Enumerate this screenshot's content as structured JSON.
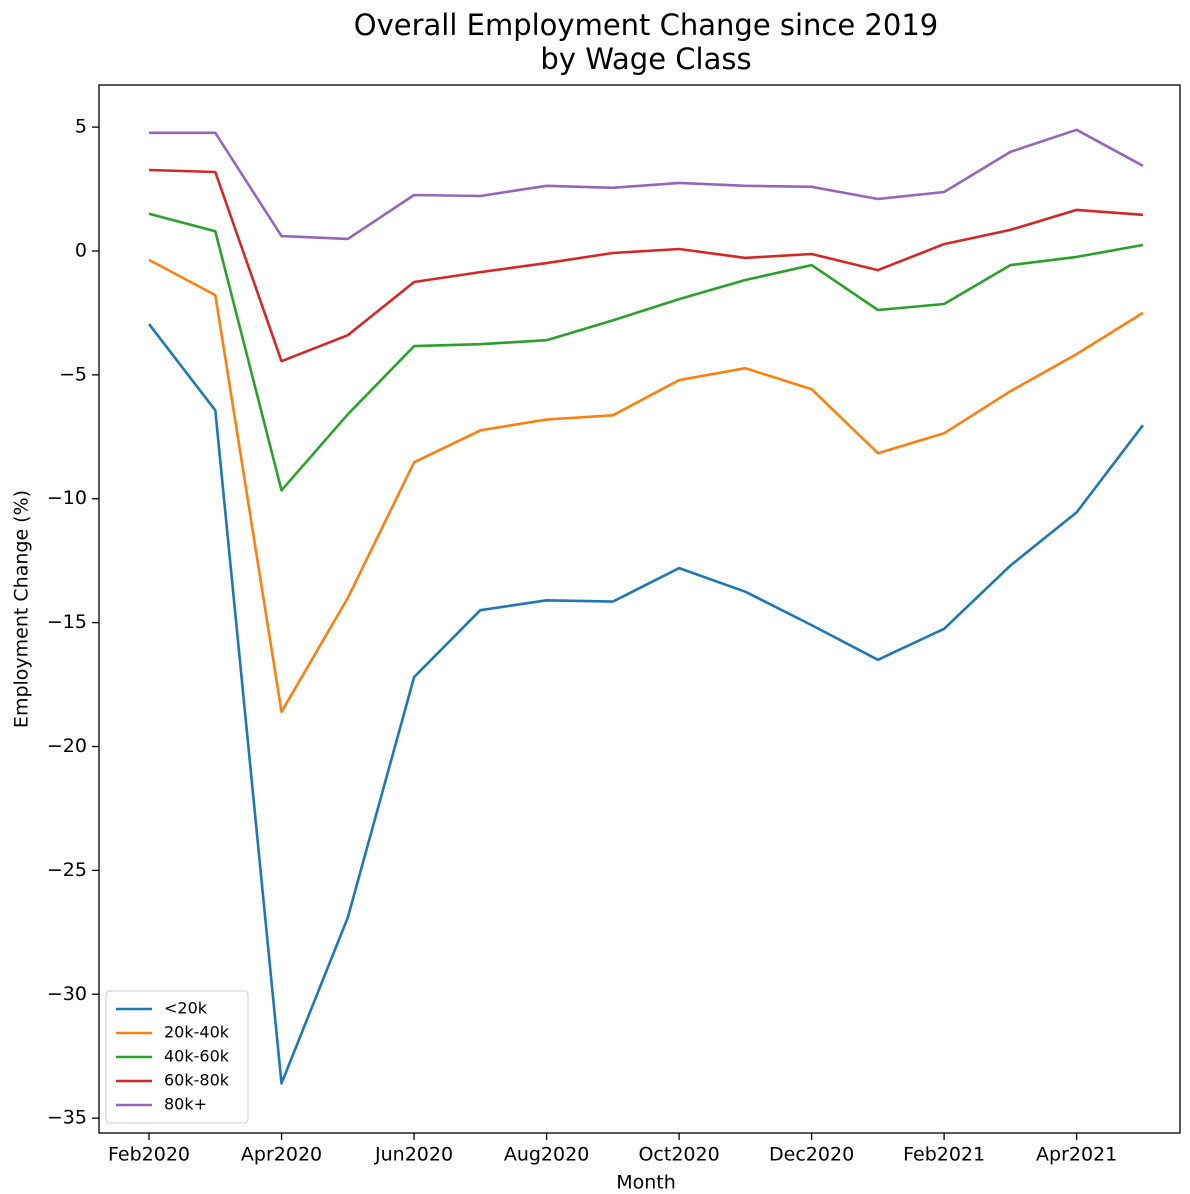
{
  "chart_data": {
    "type": "line",
    "title": [
      "Overall Employment Change since 2019",
      "by Wage Class"
    ],
    "x_label": "Month",
    "y_label": "Employment Change (%)",
    "categories": [
      "Feb2020",
      null,
      "Apr2020",
      null,
      "Jun2020",
      null,
      "Aug2020",
      null,
      "Oct2020",
      null,
      "Dec2020",
      null,
      "Feb2021",
      null,
      "Apr2021",
      null
    ],
    "series": [
      {
        "name": "<20k",
        "color": "#1f77b4",
        "values": [
          -2.95,
          -6.43,
          -33.6,
          -26.9,
          -17.2,
          -14.5,
          -14.1,
          -14.15,
          -12.8,
          -13.75,
          -15.1,
          -16.5,
          -15.25,
          -12.7,
          -10.55,
          -7.03
        ]
      },
      {
        "name": "20k-40k",
        "color": "#ff7f0e",
        "values": [
          -0.36,
          -1.78,
          -18.6,
          -14.0,
          -8.53,
          -7.24,
          -6.8,
          -6.63,
          -5.21,
          -4.73,
          -5.58,
          -8.16,
          -7.36,
          -5.66,
          -4.16,
          -2.5
        ]
      },
      {
        "name": "40k-60k",
        "color": "#2ca02c",
        "values": [
          1.5,
          0.8,
          -9.66,
          -6.59,
          -3.84,
          -3.76,
          -3.6,
          -2.8,
          -1.94,
          -1.17,
          -0.57,
          -2.38,
          -2.14,
          -0.57,
          -0.24,
          0.24
        ]
      },
      {
        "name": "60k-80k",
        "color": "#d62728",
        "values": [
          3.27,
          3.19,
          -4.45,
          -3.4,
          -1.25,
          -0.85,
          -0.49,
          -0.08,
          0.08,
          -0.28,
          -0.12,
          -0.77,
          0.28,
          0.85,
          1.66,
          1.46
        ]
      },
      {
        "name": "80k+",
        "color": "#9467bd",
        "values": [
          4.77,
          4.77,
          0.6,
          0.49,
          2.26,
          2.22,
          2.63,
          2.55,
          2.75,
          2.63,
          2.59,
          2.1,
          2.38,
          4.0,
          4.89,
          3.44
        ]
      }
    ],
    "ylim": [
      -35.6,
      6.7
    ],
    "yticks": [
      5,
      0,
      {
        "value": -5,
        "label": "−5"
      },
      {
        "value": -10,
        "label": "−10"
      },
      {
        "value": -15,
        "label": "−15"
      },
      {
        "value": -20,
        "label": "−20"
      },
      {
        "value": -25,
        "label": "−25"
      },
      {
        "value": -30,
        "label": "−30"
      },
      {
        "value": -35,
        "label": "−35"
      }
    ],
    "legend": "lower left",
    "grid": false
  }
}
